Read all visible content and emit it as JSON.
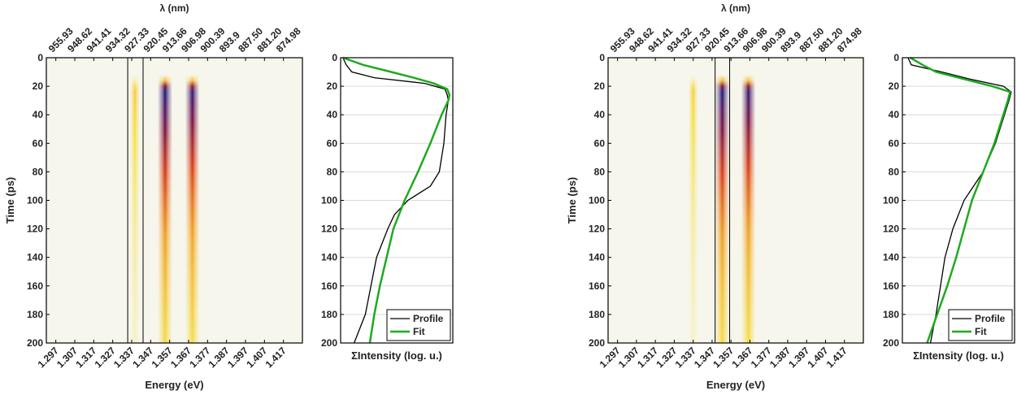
{
  "chart_data": [
    {
      "type": "heatmap",
      "xlabel": "Energy (eV)",
      "ylabel": "Time (ps)",
      "x2label": "λ (nm)",
      "xlim": [
        1.292,
        1.427
      ],
      "xticks": [
        1.297,
        1.307,
        1.317,
        1.327,
        1.337,
        1.347,
        1.357,
        1.367,
        1.377,
        1.387,
        1.397,
        1.407,
        1.417
      ],
      "x2ticks": [
        955.93,
        948.62,
        941.41,
        934.32,
        927.33,
        920.45,
        913.66,
        906.98,
        900.39,
        893.9,
        {
          "value": 887.5,
          "label": "887.50"
        },
        {
          "value": 881.2,
          "label": "881.20"
        },
        874.98
      ],
      "ylim": [
        0,
        200
      ],
      "yticks": [
        0,
        20,
        40,
        60,
        80,
        100,
        120,
        140,
        160,
        180,
        200
      ],
      "markers": [
        1.3349,
        1.343
      ],
      "lines": [
        {
          "energy": 1.3387,
          "intensity": 0.22
        },
        {
          "energy": 1.3546,
          "intensity": 1
        },
        {
          "energy": 1.369,
          "intensity": 0.95
        }
      ]
    },
    {
      "type": "line",
      "xlabel": "ΣIntensity (log. u.)",
      "ylim": [
        0,
        200
      ],
      "yticks": [
        0,
        20,
        40,
        60,
        80,
        100,
        120,
        140,
        160,
        180,
        200
      ],
      "xlim": [
        0,
        1
      ],
      "grid": true,
      "legend": "lower right",
      "x": [
        0,
        5,
        10,
        14,
        18,
        22,
        26,
        30,
        40,
        60,
        80,
        90,
        100,
        110,
        120,
        140,
        160,
        180,
        200
      ],
      "series": [
        {
          "name": "Profile",
          "color": "#000000",
          "values": [
            0.02,
            0.05,
            0.1,
            0.3,
            0.75,
            0.93,
            0.95,
            0.96,
            0.94,
            0.92,
            0.88,
            0.8,
            0.6,
            0.48,
            0.42,
            0.32,
            0.27,
            0.22,
            0.12
          ]
        },
        {
          "name": "Fit",
          "color": "#1faa1f",
          "values": [
            0.02,
            0.2,
            0.45,
            0.65,
            0.83,
            0.95,
            0.97,
            0.96,
            0.9,
            0.8,
            0.69,
            0.63,
            0.57,
            0.52,
            0.47,
            0.41,
            0.35,
            0.3,
            0.26
          ]
        }
      ]
    },
    {
      "type": "heatmap",
      "xlabel": "Energy (eV)",
      "ylabel": "Time (ps)",
      "x2label": "λ (nm)",
      "xlim": [
        1.292,
        1.427
      ],
      "xticks": [
        1.297,
        1.307,
        1.317,
        1.327,
        1.337,
        1.347,
        1.357,
        1.367,
        1.377,
        1.387,
        1.397,
        1.407,
        1.417
      ],
      "x2ticks": [
        955.93,
        948.62,
        941.41,
        934.32,
        927.33,
        920.45,
        913.66,
        906.98,
        900.39,
        893.9,
        {
          "value": 887.5,
          "label": "887.50"
        },
        {
          "value": 881.2,
          "label": "881.20"
        },
        874.98
      ],
      "ylim": [
        0,
        200
      ],
      "yticks": [
        0,
        20,
        40,
        60,
        80,
        100,
        120,
        140,
        160,
        180,
        200
      ],
      "markers": [
        1.3486,
        1.3563
      ],
      "lines": [
        {
          "energy": 1.337,
          "intensity": 0.2
        },
        {
          "energy": 1.3524,
          "intensity": 1
        },
        {
          "energy": 1.3662,
          "intensity": 0.95
        }
      ]
    },
    {
      "type": "line",
      "xlabel": "ΣIntensity (log. u.)",
      "ylim": [
        0,
        200
      ],
      "yticks": [
        0,
        20,
        40,
        60,
        80,
        100,
        120,
        140,
        160,
        180,
        200
      ],
      "xlim": [
        0,
        1
      ],
      "grid": true,
      "legend": "lower right",
      "x": [
        0,
        5,
        10,
        15,
        20,
        24,
        30,
        60,
        80,
        100,
        120,
        140,
        160,
        180,
        200
      ],
      "series": [
        {
          "name": "Profile",
          "color": "#000000",
          "values": [
            0.05,
            0.08,
            0.35,
            0.6,
            0.9,
            0.97,
            0.95,
            0.83,
            0.72,
            0.55,
            0.45,
            0.38,
            0.34,
            0.3,
            0.25
          ]
        },
        {
          "name": "Fit",
          "color": "#1faa1f",
          "values": [
            0.07,
            0.18,
            0.3,
            0.55,
            0.8,
            0.96,
            0.94,
            0.82,
            0.72,
            0.62,
            0.55,
            0.48,
            0.4,
            0.31,
            0.22
          ]
        }
      ]
    }
  ]
}
